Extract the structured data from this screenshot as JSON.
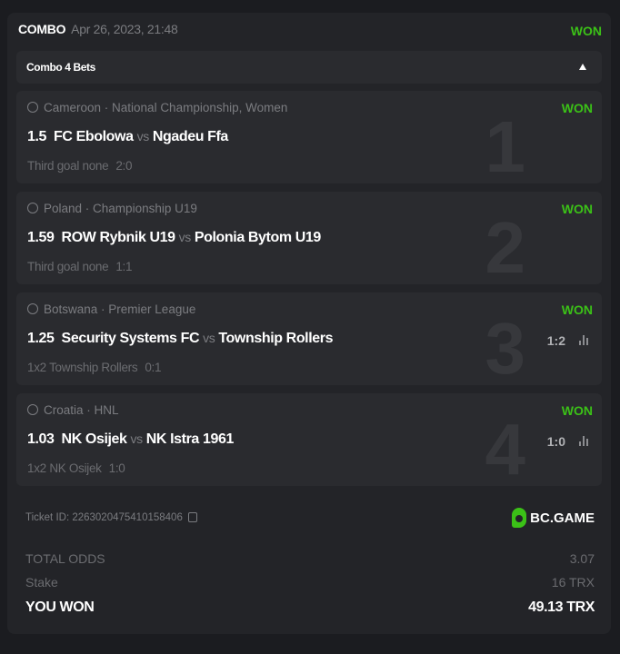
{
  "header": {
    "type": "COMBO",
    "date": "Apr 26, 2023, 21:48",
    "status": "WON"
  },
  "combo_bar": {
    "label": "Combo 4 Bets",
    "toggle_icon": "caret-up-icon"
  },
  "legs": [
    {
      "index": "1",
      "country": "Cameroon",
      "league": "National Championship, Women",
      "status": "WON",
      "odds": "1.5",
      "home": "FC Ebolowa",
      "vs": "vs",
      "away": "Ngadeu Ffa",
      "market": "Third goal none",
      "result": "2:0",
      "score": ""
    },
    {
      "index": "2",
      "country": "Poland",
      "league": "Championship U19",
      "status": "WON",
      "odds": "1.59",
      "home": "ROW Rybnik U19",
      "vs": "vs",
      "away": "Polonia Bytom U19",
      "market": "Third goal none",
      "result": "1:1",
      "score": ""
    },
    {
      "index": "3",
      "country": "Botswana",
      "league": "Premier League",
      "status": "WON",
      "odds": "1.25",
      "home": "Security Systems FC",
      "vs": "vs",
      "away": "Township Rollers",
      "market": "1x2 Township Rollers",
      "result": "0:1",
      "score": "1:2"
    },
    {
      "index": "4",
      "country": "Croatia",
      "league": "HNL",
      "status": "WON",
      "odds": "1.03",
      "home": "NK Osijek",
      "vs": "vs",
      "away": "NK Istra 1961",
      "market": "1x2 NK Osijek",
      "result": "1:0",
      "score": "1:0"
    }
  ],
  "footer": {
    "ticket_id": "Ticket ID: 2263020475410158406",
    "brand": "BC.GAME",
    "total_odds_label": "TOTAL ODDS",
    "total_odds": "3.07",
    "stake_label": "Stake",
    "stake": "16 TRX",
    "won_label": "YOU WON",
    "won": "49.13 TRX"
  },
  "colors": {
    "won": "#3bc117",
    "background": "#1b1c20",
    "card": "#232428"
  }
}
